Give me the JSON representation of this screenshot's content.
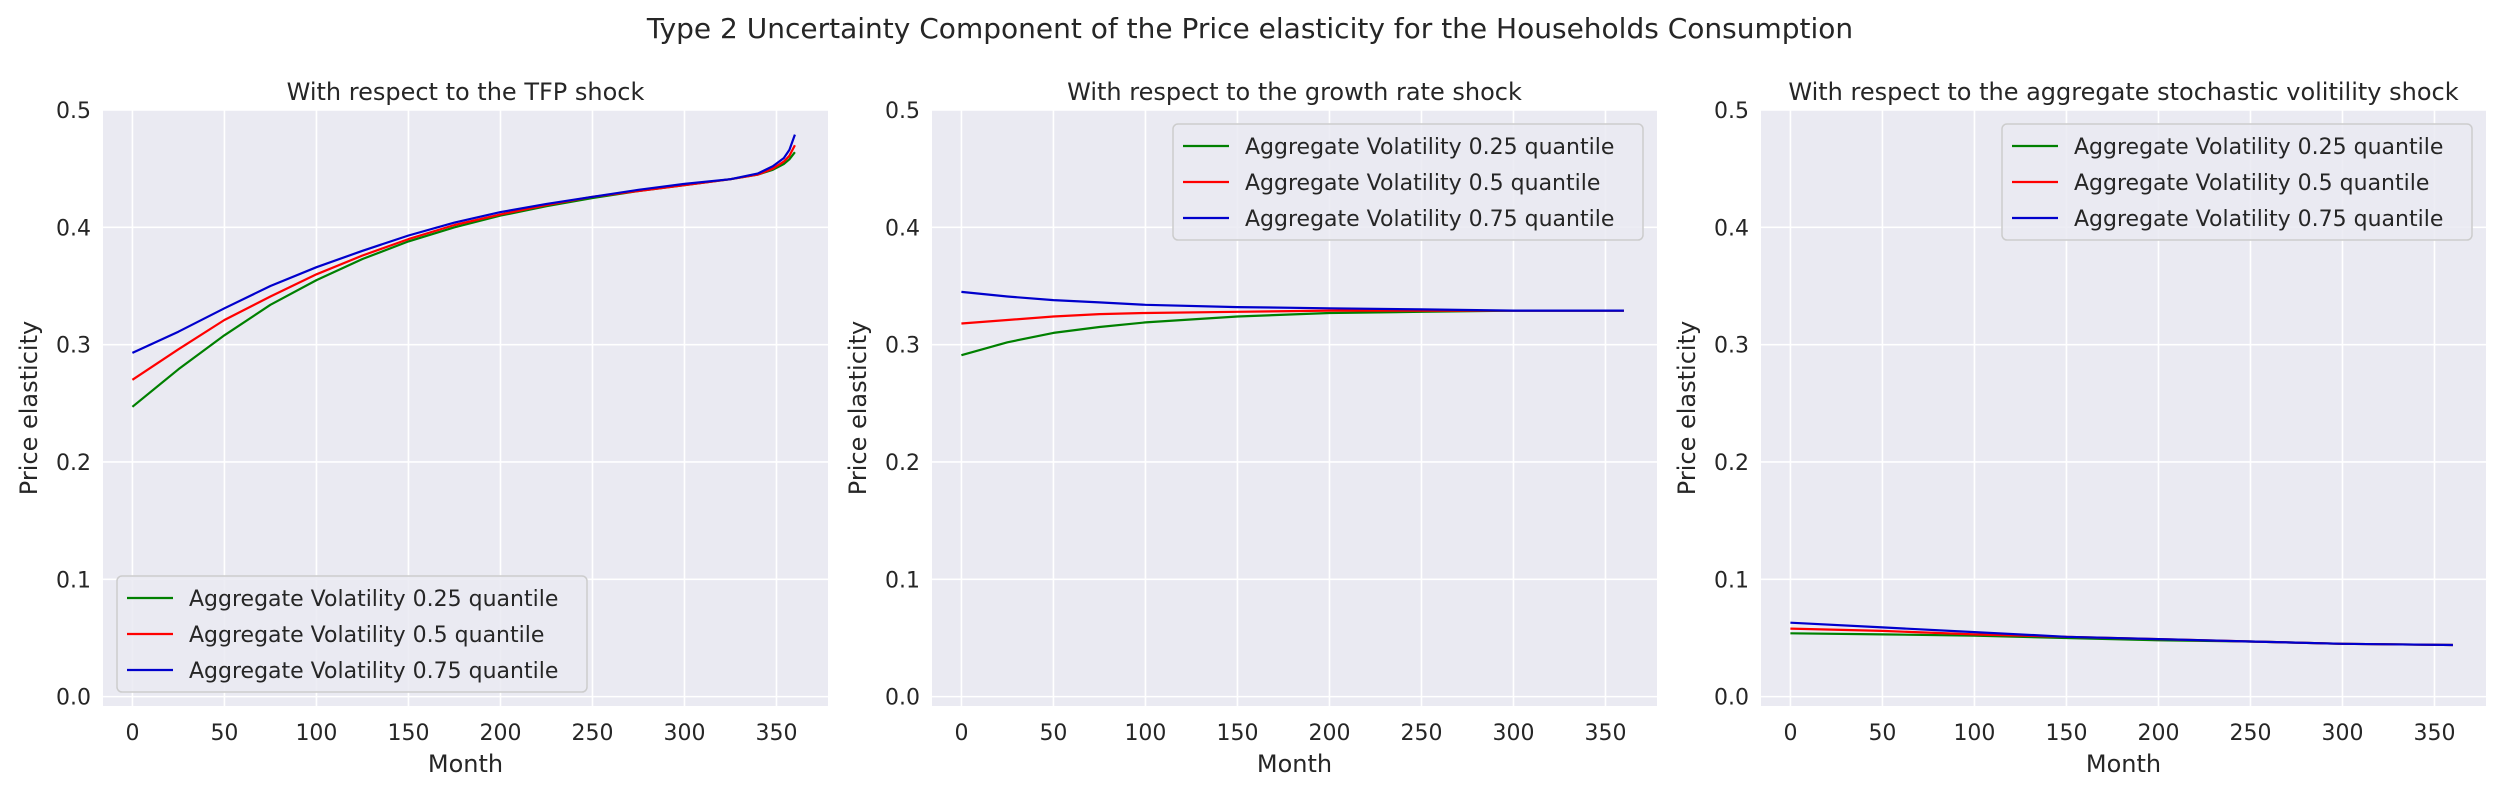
{
  "figure": {
    "suptitle": "Type 2 Uncertainty Component of the Price elasticity for the Households Consumption"
  },
  "style": {
    "panel_background": "#eaeaf2",
    "grid_color": "#ffffff",
    "text_color": "#262626",
    "legend_background": "#eaeaf2",
    "legend_border": "#cccccc"
  },
  "chart_data": [
    {
      "type": "line",
      "title": "With respect to the TFP shock",
      "xlabel": "Month",
      "ylabel": "Price elasticity",
      "xlim": [
        -16,
        378
      ],
      "ylim": [
        -0.008,
        0.5
      ],
      "xticks": [
        0,
        50,
        100,
        150,
        200,
        250,
        300,
        350
      ],
      "yticks": [
        0.0,
        0.1,
        0.2,
        0.3,
        0.4,
        0.5
      ],
      "grid": true,
      "legend_position": "lower-left",
      "x": [
        0,
        25,
        50,
        75,
        100,
        125,
        150,
        175,
        200,
        225,
        250,
        275,
        300,
        325,
        340,
        348,
        354,
        357,
        360
      ],
      "series": [
        {
          "name": "Aggregate Volatility 0.25 quantile",
          "color": "#008000",
          "values": [
            0.247,
            0.279,
            0.308,
            0.334,
            0.355,
            0.373,
            0.388,
            0.4,
            0.41,
            0.418,
            0.425,
            0.431,
            0.436,
            0.441,
            0.445,
            0.449,
            0.454,
            0.458,
            0.464
          ]
        },
        {
          "name": "Aggregate Volatility 0.5 quantile",
          "color": "#ff0000",
          "values": [
            0.27,
            0.296,
            0.321,
            0.341,
            0.36,
            0.376,
            0.39,
            0.402,
            0.411,
            0.419,
            0.426,
            0.431,
            0.436,
            0.441,
            0.445,
            0.45,
            0.456,
            0.461,
            0.47
          ]
        },
        {
          "name": "Aggregate Volatility 0.75 quantile",
          "color": "#0000cc",
          "values": [
            0.293,
            0.311,
            0.331,
            0.35,
            0.366,
            0.38,
            0.393,
            0.404,
            0.413,
            0.42,
            0.426,
            0.432,
            0.437,
            0.441,
            0.446,
            0.452,
            0.459,
            0.466,
            0.479
          ]
        }
      ]
    },
    {
      "type": "line",
      "title": "With respect to the growth rate shock",
      "xlabel": "Month",
      "ylabel": "Price elasticity",
      "xlim": [
        -16,
        378
      ],
      "ylim": [
        -0.008,
        0.5
      ],
      "xticks": [
        0,
        50,
        100,
        150,
        200,
        250,
        300,
        350
      ],
      "yticks": [
        0.0,
        0.1,
        0.2,
        0.3,
        0.4,
        0.5
      ],
      "grid": true,
      "legend_position": "upper-right",
      "x": [
        0,
        25,
        50,
        75,
        100,
        150,
        200,
        250,
        300,
        360
      ],
      "series": [
        {
          "name": "Aggregate Volatility 0.25 quantile",
          "color": "#008000",
          "values": [
            0.291,
            0.302,
            0.31,
            0.315,
            0.319,
            0.324,
            0.327,
            0.328,
            0.329,
            0.329
          ]
        },
        {
          "name": "Aggregate Volatility 0.5 quantile",
          "color": "#ff0000",
          "values": [
            0.318,
            0.321,
            0.324,
            0.326,
            0.327,
            0.328,
            0.329,
            0.329,
            0.329,
            0.329
          ]
        },
        {
          "name": "Aggregate Volatility 0.75 quantile",
          "color": "#0000cc",
          "values": [
            0.345,
            0.341,
            0.338,
            0.336,
            0.334,
            0.332,
            0.331,
            0.33,
            0.329,
            0.329
          ]
        }
      ]
    },
    {
      "type": "line",
      "title": "With respect to the aggregate stochastic volitility shock",
      "xlabel": "Month",
      "ylabel": "Price elasticity",
      "xlim": [
        -16,
        378
      ],
      "ylim": [
        -0.008,
        0.5
      ],
      "xticks": [
        0,
        50,
        100,
        150,
        200,
        250,
        300,
        350
      ],
      "yticks": [
        0.0,
        0.1,
        0.2,
        0.3,
        0.4,
        0.5
      ],
      "grid": true,
      "legend_position": "upper-right",
      "x": [
        0,
        50,
        100,
        150,
        200,
        250,
        300,
        360
      ],
      "series": [
        {
          "name": "Aggregate Volatility 0.25 quantile",
          "color": "#008000",
          "values": [
            0.054,
            0.053,
            0.052,
            0.05,
            0.048,
            0.047,
            0.045,
            0.044
          ]
        },
        {
          "name": "Aggregate Volatility 0.5 quantile",
          "color": "#ff0000",
          "values": [
            0.058,
            0.056,
            0.053,
            0.051,
            0.049,
            0.047,
            0.045,
            0.044
          ]
        },
        {
          "name": "Aggregate Volatility 0.75 quantile",
          "color": "#0000cc",
          "values": [
            0.063,
            0.059,
            0.055,
            0.051,
            0.049,
            0.047,
            0.045,
            0.044
          ]
        }
      ]
    }
  ]
}
